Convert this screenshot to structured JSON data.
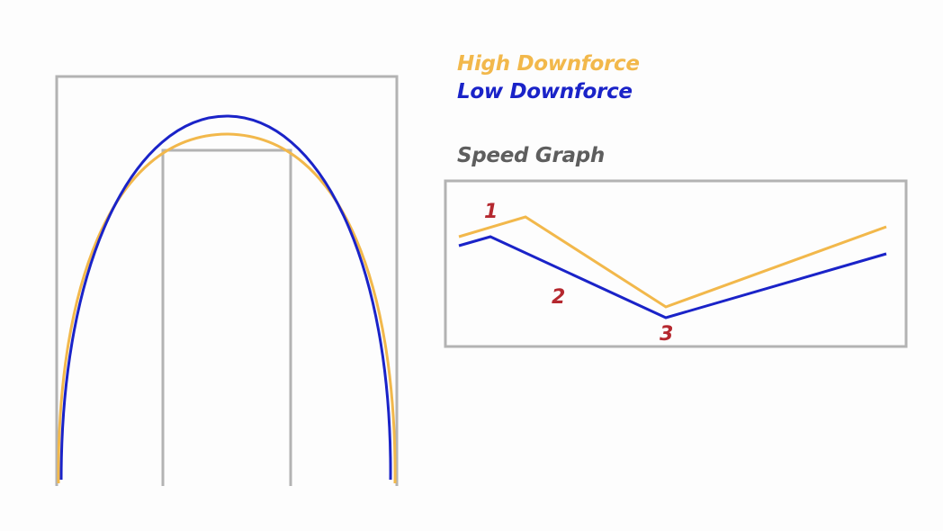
{
  "legend": {
    "high": {
      "label": "High Downforce",
      "color": "#f2b84b"
    },
    "low": {
      "label": "Low Downforce",
      "color": "#1a23c8"
    }
  },
  "speed_graph": {
    "title": "Speed Graph",
    "title_color": "#5e5e5e",
    "markers": [
      "1",
      "2",
      "3"
    ],
    "marker_color": "#b5282f"
  },
  "frame_color": "#b3b3b3"
}
